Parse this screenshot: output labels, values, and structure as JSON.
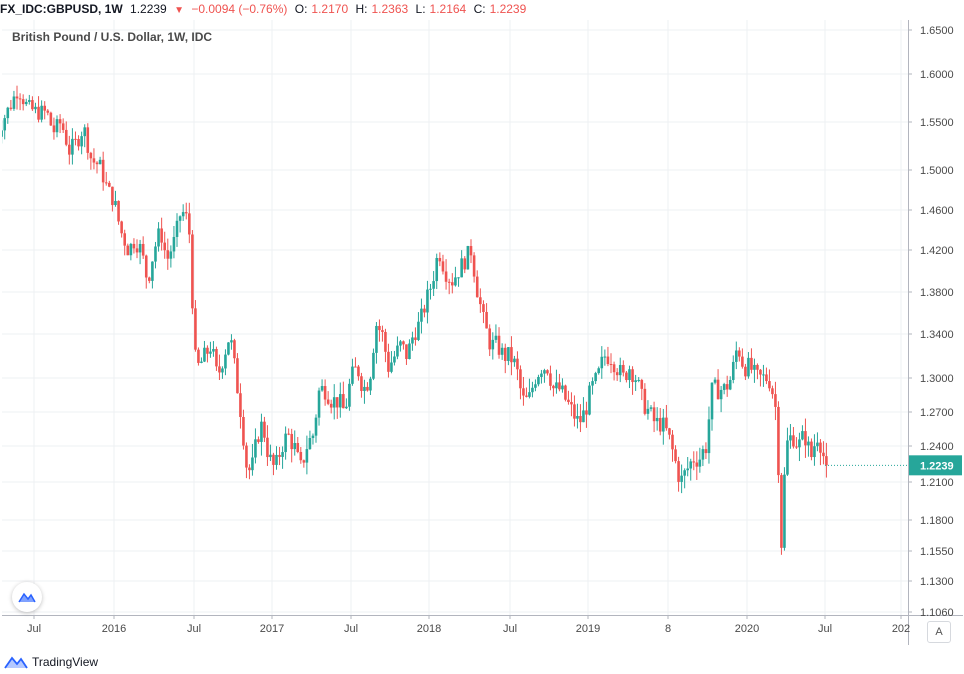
{
  "legend": {
    "symbol": "FX_IDC:GBPUSD, 1W",
    "last": "1.2239",
    "arrow": "▼",
    "change": "−0.0094 (−0.76%)",
    "o_label": "O:",
    "o_value": "1.2170",
    "h_label": "H:",
    "h_value": "1.2363",
    "l_label": "L:",
    "l_value": "1.2164",
    "c_label": "C:",
    "c_value": "1.2239"
  },
  "footer": {
    "brand": "TradingView"
  },
  "auto_label": "A",
  "chart_data": {
    "type": "candlestick",
    "title": "British Pound / U.S. Dollar, 1W, IDC",
    "y_ticks": [
      "1.6500",
      "1.6000",
      "1.5500",
      "1.5000",
      "1.4600",
      "1.4200",
      "1.3800",
      "1.3400",
      "1.3000",
      "1.2700",
      "1.2400",
      "1.2100",
      "1.1800",
      "1.1550",
      "1.1300",
      "1.1060"
    ],
    "y_tick_values": [
      1.65,
      1.6,
      1.55,
      1.5,
      1.46,
      1.42,
      1.38,
      1.34,
      1.3,
      1.27,
      1.24,
      1.21,
      1.18,
      1.155,
      1.13,
      1.106
    ],
    "x_ticks": [
      "Jul",
      "2016",
      "Jul",
      "2017",
      "Jul",
      "2018",
      "Jul",
      "2019",
      "8",
      "2020",
      "Jul",
      "202"
    ],
    "x_tick_years": [
      2015.5,
      2016.0,
      2016.5,
      2017.0,
      2017.5,
      2018.0,
      2018.5,
      2019.0,
      2019.5,
      2020.0,
      2020.5,
      2021.0
    ],
    "last_price": "1.2239",
    "last_price_value": 1.2239,
    "up_color": "#26a69a",
    "down_color": "#ef5350",
    "weekly_closes": [
      [
        2015.24,
        1.52
      ],
      [
        2015.3,
        1.55
      ],
      [
        2015.36,
        1.57
      ],
      [
        2015.4,
        1.585
      ],
      [
        2015.46,
        1.565
      ],
      [
        2015.52,
        1.56
      ],
      [
        2015.58,
        1.56
      ],
      [
        2015.62,
        1.54
      ],
      [
        2015.67,
        1.55
      ],
      [
        2015.72,
        1.52
      ],
      [
        2015.77,
        1.53
      ],
      [
        2015.81,
        1.545
      ],
      [
        2015.86,
        1.51
      ],
      [
        2015.91,
        1.505
      ],
      [
        2015.96,
        1.48
      ],
      [
        2016.0,
        1.47
      ],
      [
        2016.04,
        1.44
      ],
      [
        2016.09,
        1.42
      ],
      [
        2016.13,
        1.43
      ],
      [
        2016.17,
        1.42
      ],
      [
        2016.21,
        1.39
      ],
      [
        2016.25,
        1.42
      ],
      [
        2016.29,
        1.44
      ],
      [
        2016.33,
        1.41
      ],
      [
        2016.38,
        1.43
      ],
      [
        2016.42,
        1.46
      ],
      [
        2016.46,
        1.45
      ],
      [
        2016.48,
        1.425
      ],
      [
        2016.5,
        1.32
      ],
      [
        2016.53,
        1.31
      ],
      [
        2016.57,
        1.32
      ],
      [
        2016.61,
        1.33
      ],
      [
        2016.65,
        1.3
      ],
      [
        2016.69,
        1.32
      ],
      [
        2016.73,
        1.34
      ],
      [
        2016.77,
        1.3
      ],
      [
        2016.8,
        1.27
      ],
      [
        2016.84,
        1.22
      ],
      [
        2016.87,
        1.22
      ],
      [
        2016.91,
        1.25
      ],
      [
        2016.94,
        1.26
      ],
      [
        2016.98,
        1.23
      ],
      [
        2017.02,
        1.22
      ],
      [
        2017.06,
        1.24
      ],
      [
        2017.1,
        1.25
      ],
      [
        2017.14,
        1.24
      ],
      [
        2017.18,
        1.22
      ],
      [
        2017.22,
        1.24
      ],
      [
        2017.26,
        1.25
      ],
      [
        2017.3,
        1.29
      ],
      [
        2017.34,
        1.29
      ],
      [
        2017.38,
        1.28
      ],
      [
        2017.42,
        1.28
      ],
      [
        2017.46,
        1.27
      ],
      [
        2017.5,
        1.3
      ],
      [
        2017.54,
        1.31
      ],
      [
        2017.58,
        1.29
      ],
      [
        2017.62,
        1.3
      ],
      [
        2017.66,
        1.35
      ],
      [
        2017.7,
        1.34
      ],
      [
        2017.74,
        1.31
      ],
      [
        2017.78,
        1.32
      ],
      [
        2017.82,
        1.33
      ],
      [
        2017.86,
        1.32
      ],
      [
        2017.9,
        1.34
      ],
      [
        2017.94,
        1.35
      ],
      [
        2017.98,
        1.37
      ],
      [
        2018.02,
        1.39
      ],
      [
        2018.06,
        1.42
      ],
      [
        2018.1,
        1.4
      ],
      [
        2018.14,
        1.39
      ],
      [
        2018.18,
        1.4
      ],
      [
        2018.22,
        1.41
      ],
      [
        2018.26,
        1.42
      ],
      [
        2018.3,
        1.38
      ],
      [
        2018.34,
        1.35
      ],
      [
        2018.38,
        1.33
      ],
      [
        2018.42,
        1.33
      ],
      [
        2018.46,
        1.32
      ],
      [
        2018.5,
        1.32
      ],
      [
        2018.54,
        1.31
      ],
      [
        2018.58,
        1.28
      ],
      [
        2018.62,
        1.28
      ],
      [
        2018.66,
        1.3
      ],
      [
        2018.7,
        1.31
      ],
      [
        2018.74,
        1.31
      ],
      [
        2018.78,
        1.29
      ],
      [
        2018.82,
        1.29
      ],
      [
        2018.86,
        1.28
      ],
      [
        2018.9,
        1.27
      ],
      [
        2018.94,
        1.26
      ],
      [
        2018.98,
        1.27
      ],
      [
        2019.02,
        1.29
      ],
      [
        2019.06,
        1.3
      ],
      [
        2019.1,
        1.32
      ],
      [
        2019.14,
        1.32
      ],
      [
        2019.18,
        1.31
      ],
      [
        2019.22,
        1.3
      ],
      [
        2019.26,
        1.31
      ],
      [
        2019.3,
        1.3
      ],
      [
        2019.34,
        1.28
      ],
      [
        2019.38,
        1.27
      ],
      [
        2019.42,
        1.26
      ],
      [
        2019.46,
        1.26
      ],
      [
        2019.5,
        1.25
      ],
      [
        2019.54,
        1.23
      ],
      [
        2019.58,
        1.21
      ],
      [
        2019.62,
        1.22
      ],
      [
        2019.66,
        1.23
      ],
      [
        2019.7,
        1.23
      ],
      [
        2019.74,
        1.24
      ],
      [
        2019.78,
        1.29
      ],
      [
        2019.82,
        1.29
      ],
      [
        2019.86,
        1.29
      ],
      [
        2019.9,
        1.3
      ],
      [
        2019.94,
        1.33
      ],
      [
        2019.98,
        1.31
      ],
      [
        2020.02,
        1.31
      ],
      [
        2020.06,
        1.3
      ],
      [
        2020.1,
        1.3
      ],
      [
        2020.14,
        1.3
      ],
      [
        2020.18,
        1.28
      ],
      [
        2020.2,
        1.23
      ],
      [
        2020.22,
        1.16
      ],
      [
        2020.25,
        1.24
      ],
      [
        2020.29,
        1.25
      ],
      [
        2020.33,
        1.24
      ],
      [
        2020.37,
        1.25
      ],
      [
        2020.41,
        1.23
      ],
      [
        2020.45,
        1.25
      ],
      [
        2020.48,
        1.24
      ],
      [
        2020.5,
        1.2239
      ]
    ]
  }
}
